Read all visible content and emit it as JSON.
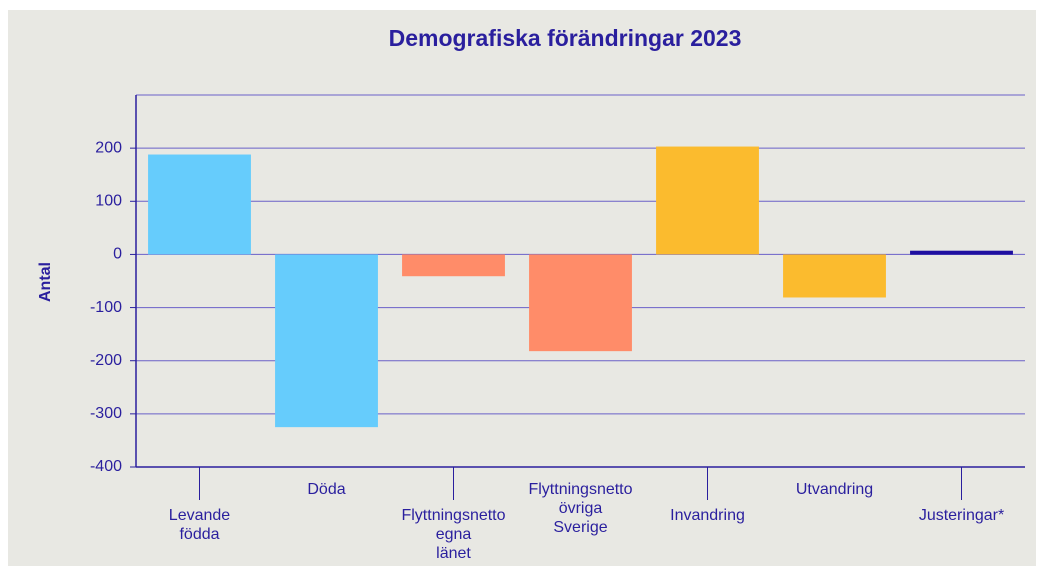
{
  "chart_data": {
    "type": "bar",
    "title": "Demografiska förändringar 2023",
    "ylabel": "Antal",
    "categories": [
      "Levande\nfödda",
      "Döda",
      "Flyttningsnetto\negna\nlänet",
      "Flyttningsnetto\növriga\nSverige",
      "Invandring",
      "Utvandring",
      "Justeringar*"
    ],
    "values": [
      188,
      -325,
      -41,
      -182,
      203,
      -81,
      7
    ],
    "colors": [
      "#66ccfc",
      "#66ccfc",
      "#ff8c69",
      "#ff8c69",
      "#fbbb2e",
      "#fbbb2e",
      "#1e0fa0"
    ],
    "ylim": [
      -400,
      300
    ],
    "yticks": [
      -400,
      -300,
      -200,
      -100,
      0,
      100,
      200
    ],
    "grid": true
  }
}
